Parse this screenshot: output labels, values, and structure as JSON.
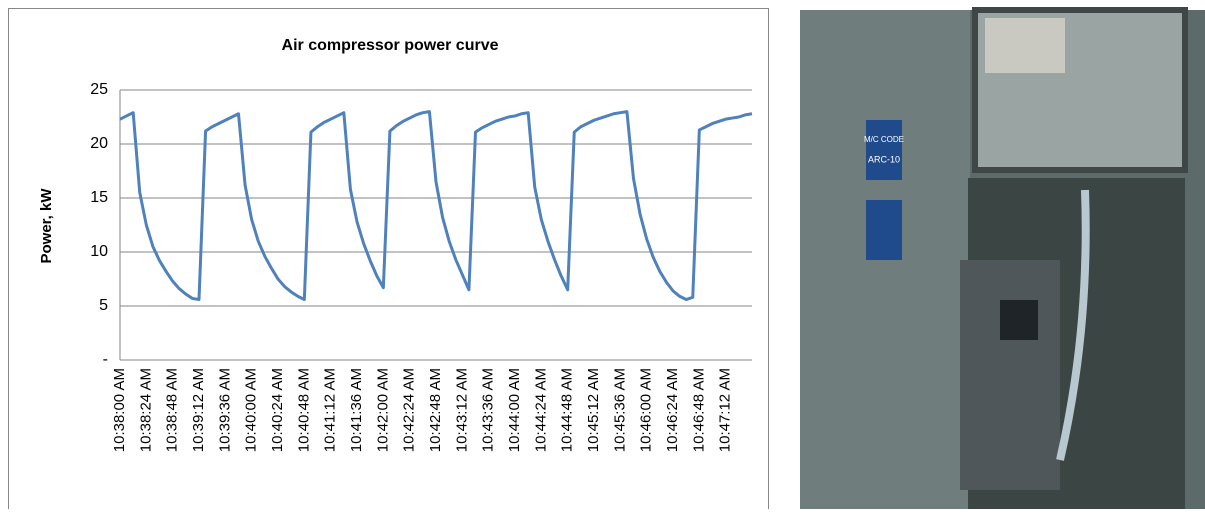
{
  "chart_data": {
    "type": "line",
    "title": "Air compressor power curve",
    "y_label": "Power, kW",
    "categories": [
      "10:38:00 AM",
      null,
      null,
      null,
      "10:38:24 AM",
      null,
      null,
      null,
      "10:38:48 AM",
      null,
      null,
      null,
      "10:39:12 AM",
      null,
      null,
      null,
      "10:39:36 AM",
      null,
      null,
      null,
      "10:40:00 AM",
      null,
      null,
      null,
      "10:40:24 AM",
      null,
      null,
      null,
      "10:40:48 AM",
      null,
      null,
      null,
      "10:41:12 AM",
      null,
      null,
      null,
      "10:41:36 AM",
      null,
      null,
      null,
      "10:42:00 AM",
      null,
      null,
      null,
      "10:42:24 AM",
      null,
      null,
      null,
      "10:42:48 AM",
      null,
      null,
      null,
      "10:43:12 AM",
      null,
      null,
      null,
      "10:43:36 AM",
      null,
      null,
      null,
      "10:44:00 AM",
      null,
      null,
      null,
      "10:44:24 AM",
      null,
      null,
      null,
      "10:44:48 AM",
      null,
      null,
      null,
      "10:45:12 AM",
      null,
      null,
      null,
      "10:45:36 AM",
      null,
      null,
      null,
      "10:46:00 AM",
      null,
      null,
      null,
      "10:46:24 AM",
      null,
      null,
      null,
      "10:46:48 AM",
      null,
      null,
      null,
      "10:47:12 AM",
      null,
      null,
      null,
      null
    ],
    "values": [
      22.3,
      22.6,
      22.9,
      15.5,
      12.5,
      10.5,
      9.2,
      8.2,
      7.3,
      6.6,
      6.1,
      5.7,
      5.6,
      21.2,
      21.6,
      21.9,
      22.2,
      22.5,
      22.8,
      16.2,
      13,
      11,
      9.6,
      8.5,
      7.5,
      6.8,
      6.3,
      5.9,
      5.6,
      21.1,
      21.6,
      22,
      22.3,
      22.6,
      22.9,
      15.8,
      12.8,
      10.8,
      9.2,
      7.8,
      6.7,
      21.2,
      21.7,
      22.1,
      22.4,
      22.7,
      22.9,
      23,
      16.5,
      13.2,
      11,
      9.3,
      7.9,
      6.5,
      21.1,
      21.5,
      21.8,
      22.1,
      22.3,
      22.5,
      22.6,
      22.8,
      22.9,
      16,
      13,
      11,
      9.3,
      7.8,
      6.5,
      21.1,
      21.6,
      21.9,
      22.2,
      22.4,
      22.6,
      22.8,
      22.9,
      23,
      16.8,
      13.5,
      11.2,
      9.5,
      8.2,
      7.2,
      6.4,
      5.9,
      5.6,
      5.8,
      21.3,
      21.6,
      21.9,
      22.1,
      22.3,
      22.4,
      22.5,
      22.7,
      22.8
    ],
    "color": "#4f81bd",
    "ylim": [
      0,
      25
    ],
    "yticks": [
      {
        "value": 0,
        "label": "-"
      },
      5,
      10,
      15,
      20,
      25
    ],
    "grid": true
  },
  "photo": {
    "sign_lines": [
      "M/C CODE",
      "ARC-10"
    ]
  }
}
